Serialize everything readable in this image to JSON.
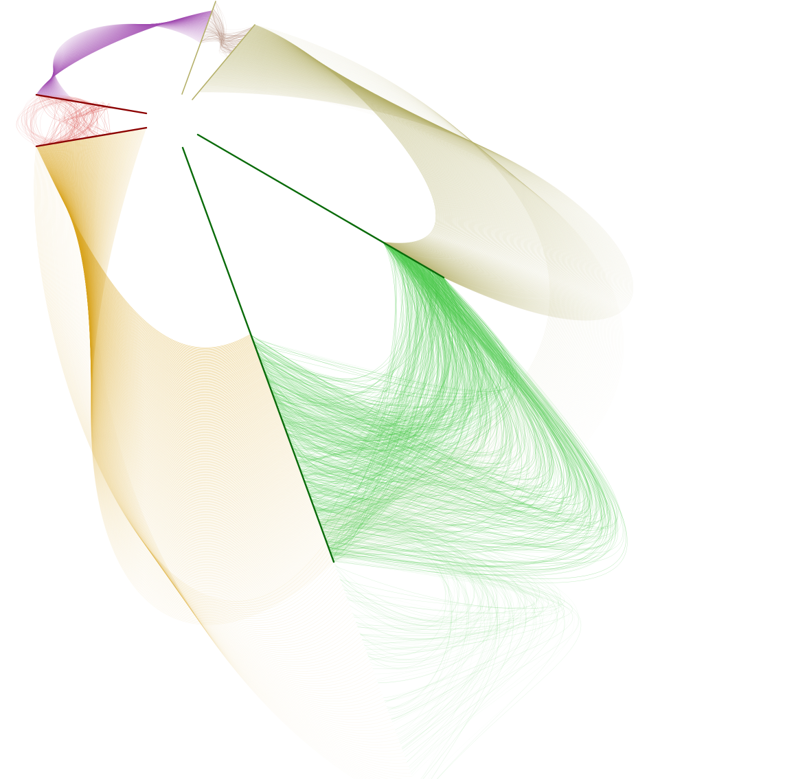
{
  "diagram": {
    "type": "hive-plot",
    "background": "#ffffff",
    "axes": [
      {
        "name": "dark-red-upper",
        "color": "#8b0000"
      },
      {
        "name": "dark-red-lower",
        "color": "#8b0000"
      },
      {
        "name": "olive-left",
        "color": "#b5b06a"
      },
      {
        "name": "olive-right",
        "color": "#b5b06a"
      },
      {
        "name": "green-right",
        "color": "#0a6b0a"
      },
      {
        "name": "green-left",
        "color": "#0a6b0a"
      }
    ],
    "edge_groups": [
      {
        "name": "purple-edges",
        "color": "#a04ab0"
      },
      {
        "name": "red-edges",
        "color": "#d9534f"
      },
      {
        "name": "tan-edges",
        "color": "#b08a7a"
      },
      {
        "name": "olive-edges",
        "color": "#b5b06a"
      },
      {
        "name": "gold-edges",
        "color": "#d9a520"
      },
      {
        "name": "green-edges",
        "color": "#4cc94c"
      }
    ]
  }
}
